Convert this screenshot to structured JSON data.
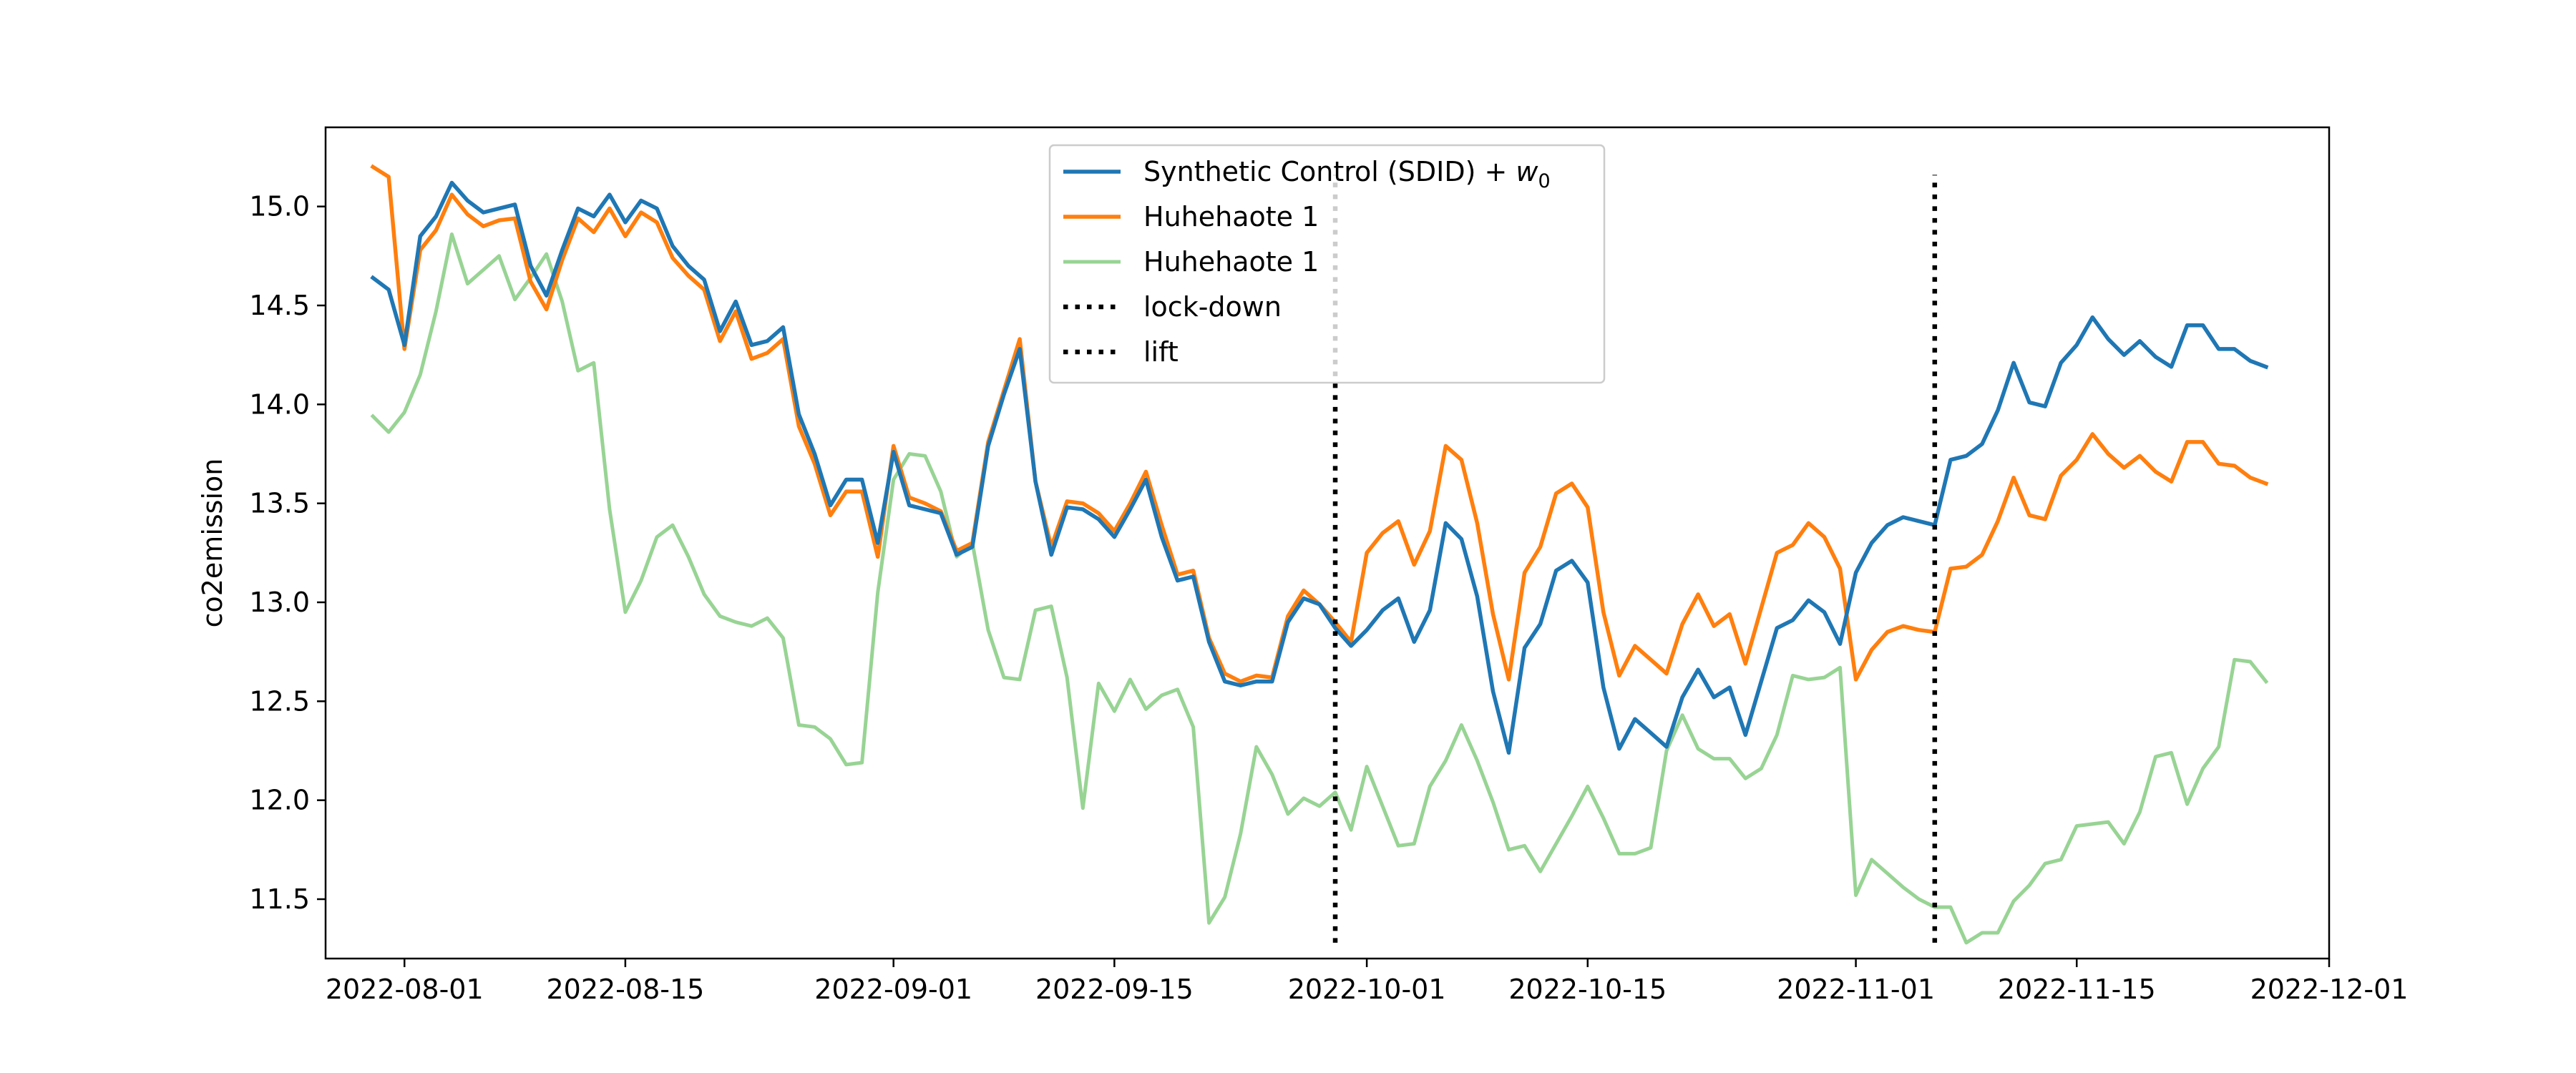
{
  "chart_data": {
    "type": "line",
    "title": "",
    "xlabel": "",
    "ylabel": "co2emission",
    "xlim": [
      "2022-07-27",
      "2022-12-01"
    ],
    "ylim": [
      11.2,
      15.4
    ],
    "x_ticks": [
      "2022-08-01",
      "2022-08-15",
      "2022-09-01",
      "2022-09-15",
      "2022-10-01",
      "2022-10-15",
      "2022-11-01",
      "2022-11-15",
      "2022-12-01"
    ],
    "y_ticks": [
      "11.5",
      "12.0",
      "12.5",
      "13.0",
      "13.5",
      "14.0",
      "14.5",
      "15.0"
    ],
    "grid": false,
    "legend_position": "top-center",
    "start_date": "2022-07-30",
    "series": [
      {
        "name": "Synthetic Control (SDID) + w0",
        "legend_main": "Synthetic Control (SDID) + ",
        "legend_math": "w",
        "legend_sub": "0",
        "color": "#1f77b4",
        "width": 5.5,
        "values": [
          14.64,
          14.58,
          14.3,
          14.85,
          14.95,
          15.12,
          15.03,
          14.97,
          14.99,
          15.01,
          14.7,
          14.55,
          14.78,
          14.99,
          14.95,
          15.06,
          14.92,
          15.03,
          14.99,
          14.8,
          14.7,
          14.63,
          14.37,
          14.52,
          14.3,
          14.32,
          14.39,
          13.95,
          13.75,
          13.49,
          13.62,
          13.62,
          13.3,
          13.76,
          13.49,
          13.47,
          13.45,
          13.24,
          13.28,
          13.79,
          14.05,
          14.28,
          13.61,
          13.24,
          13.48,
          13.47,
          13.42,
          13.33,
          13.47,
          13.62,
          13.33,
          13.11,
          13.13,
          12.8,
          12.6,
          12.58,
          12.6,
          12.6,
          12.9,
          13.02,
          12.99,
          12.87,
          12.78,
          12.86,
          12.96,
          13.02,
          12.8,
          12.96,
          13.4,
          13.32,
          13.03,
          12.55,
          12.24,
          12.77,
          12.89,
          13.16,
          13.21,
          13.1,
          12.57,
          12.26,
          12.41,
          12.34,
          12.27,
          12.52,
          12.66,
          12.52,
          12.57,
          12.33,
          12.6,
          12.87,
          12.91,
          13.01,
          12.95,
          12.79,
          13.15,
          13.3,
          13.39,
          13.43,
          13.41,
          13.39,
          13.72,
          13.74,
          13.8,
          13.97,
          14.21,
          14.01,
          13.99,
          14.21,
          14.3,
          14.44,
          14.33,
          14.25,
          14.32,
          14.24,
          14.19,
          14.4,
          14.4,
          14.28,
          14.28,
          14.22,
          14.19
        ]
      },
      {
        "name": "Huhehaote 1",
        "legend_main": "Huhehaote 1",
        "color": "#ff7f0e",
        "width": 5.5,
        "values": [
          15.2,
          15.15,
          14.28,
          14.78,
          14.88,
          15.06,
          14.96,
          14.9,
          14.93,
          14.94,
          14.62,
          14.48,
          14.73,
          14.94,
          14.87,
          14.99,
          14.85,
          14.97,
          14.92,
          14.74,
          14.65,
          14.58,
          14.32,
          14.47,
          14.23,
          14.26,
          14.33,
          13.89,
          13.7,
          13.44,
          13.56,
          13.56,
          13.23,
          13.79,
          13.53,
          13.5,
          13.46,
          13.26,
          13.3,
          13.81,
          14.07,
          14.33,
          13.61,
          13.28,
          13.51,
          13.5,
          13.45,
          13.36,
          13.5,
          13.66,
          13.39,
          13.14,
          13.16,
          12.82,
          12.64,
          12.6,
          12.63,
          12.62,
          12.93,
          13.06,
          12.99,
          12.9,
          12.8,
          13.25,
          13.35,
          13.41,
          13.19,
          13.36,
          13.79,
          13.72,
          13.4,
          12.94,
          12.61,
          13.15,
          13.28,
          13.55,
          13.6,
          13.48,
          12.95,
          12.63,
          12.78,
          12.71,
          12.64,
          12.89,
          13.04,
          12.88,
          12.94,
          12.69,
          12.97,
          13.25,
          13.29,
          13.4,
          13.33,
          13.17,
          12.61,
          12.76,
          12.85,
          12.88,
          12.86,
          12.85,
          13.17,
          13.18,
          13.24,
          13.41,
          13.63,
          13.44,
          13.42,
          13.64,
          13.72,
          13.85,
          13.75,
          13.68,
          13.74,
          13.66,
          13.61,
          13.81,
          13.81,
          13.7,
          13.69,
          13.63,
          13.6
        ]
      },
      {
        "name": "Huhehaote 1",
        "legend_main": "Huhehaote 1",
        "color": "#98d494",
        "width": 5,
        "values": [
          13.94,
          13.86,
          13.96,
          14.15,
          14.47,
          14.86,
          14.61,
          14.68,
          14.75,
          14.53,
          14.64,
          14.76,
          14.52,
          14.17,
          14.21,
          13.47,
          12.95,
          13.11,
          13.33,
          13.39,
          13.23,
          13.04,
          12.93,
          12.9,
          12.88,
          12.92,
          12.82,
          12.38,
          12.37,
          12.31,
          12.18,
          12.19,
          13.05,
          13.62,
          13.75,
          13.74,
          13.56,
          13.23,
          13.3,
          12.86,
          12.62,
          12.61,
          12.96,
          12.98,
          12.62,
          11.96,
          12.59,
          12.45,
          12.61,
          12.46,
          12.53,
          12.56,
          12.37,
          11.38,
          11.51,
          11.83,
          12.27,
          12.13,
          11.93,
          12.01,
          11.97,
          12.04,
          11.85,
          12.17,
          11.97,
          11.77,
          11.78,
          12.07,
          12.2,
          12.38,
          12.2,
          11.99,
          11.75,
          11.77,
          11.64,
          11.78,
          11.92,
          12.07,
          11.91,
          11.73,
          11.73,
          11.76,
          12.25,
          12.43,
          12.26,
          12.21,
          12.21,
          12.11,
          12.16,
          12.33,
          12.63,
          12.61,
          12.62,
          12.67,
          11.52,
          11.7,
          11.63,
          11.56,
          11.5,
          11.46,
          11.46,
          11.28,
          11.33,
          11.33,
          11.49,
          11.57,
          11.68,
          11.7,
          11.87,
          11.88,
          11.89,
          11.78,
          11.94,
          12.22,
          12.24,
          11.98,
          12.16,
          12.27,
          12.71,
          12.7,
          12.6
        ]
      }
    ],
    "vlines": [
      {
        "name": "lock-down",
        "date": "2022-09-29",
        "y_from": 11.28,
        "y_to": 15.16
      },
      {
        "name": "lift",
        "date": "2022-11-06",
        "y_from": 11.28,
        "y_to": 15.16
      }
    ]
  }
}
